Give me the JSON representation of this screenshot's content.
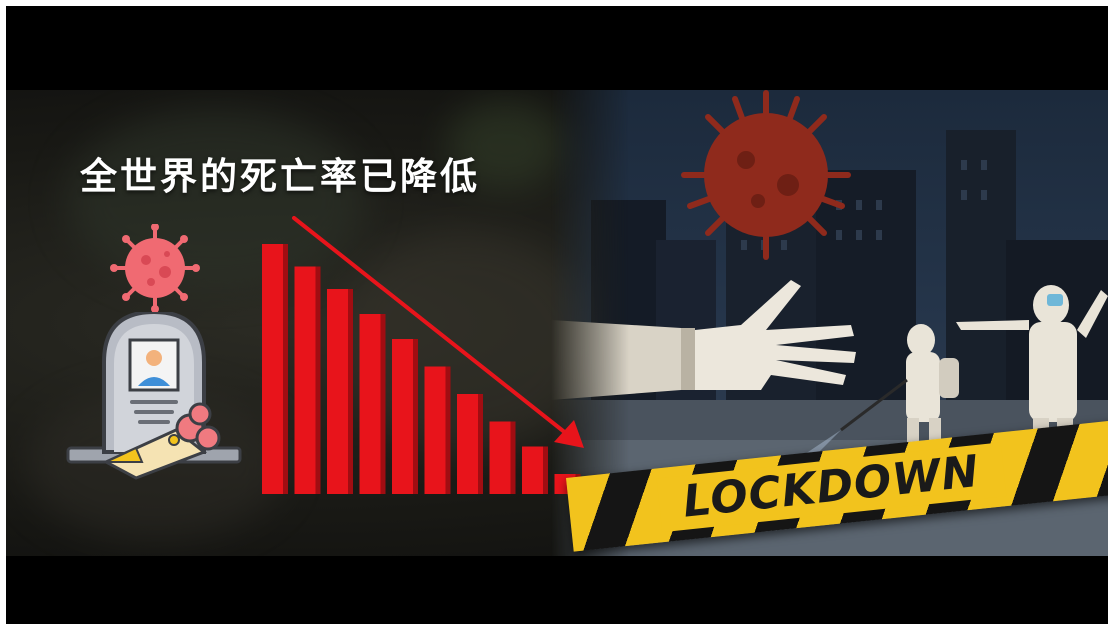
{
  "headline": {
    "text": "全世界的死亡率已降低"
  },
  "tape": {
    "text": "LOCKDOWN"
  },
  "colors": {
    "bar_red": "#e8141b",
    "tape_yellow": "#f2c31d",
    "virus_pink": "#f06a72",
    "virus_dark_red": "#8f2a1c",
    "frame": "#000000"
  },
  "icons": [
    "virus-icon",
    "gravestone-icon",
    "flower-bouquet-icon",
    "falling-bar-chart-graphic",
    "down-arrow-icon",
    "coronavirus-illustration",
    "hazmat-worker-illustration"
  ],
  "bar_chart_graphic": {
    "relative_heights": [
      1.0,
      0.91,
      0.82,
      0.72,
      0.62,
      0.51,
      0.4,
      0.29,
      0.19,
      0.08
    ]
  }
}
